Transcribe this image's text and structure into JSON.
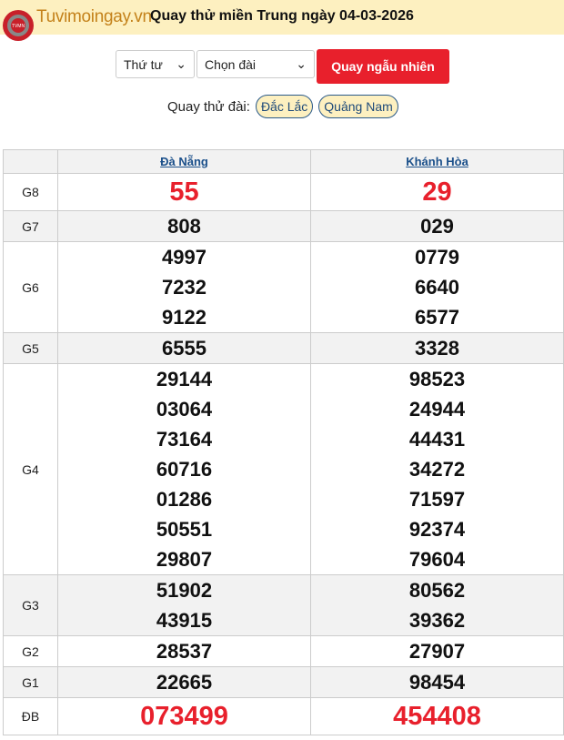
{
  "header": {
    "brand": "Tuvimoingay.vn",
    "title": "Quay thử miền Trung ngày 04-03-2026",
    "logo_text": "TVMN"
  },
  "controls": {
    "day_select": "Thứ tư",
    "province_select": "Chọn đài",
    "random_button": "Quay ngẫu nhiên"
  },
  "quick": {
    "label": "Quay thử đài:",
    "chips": [
      "Đắc Lắc",
      "Quảng Nam"
    ]
  },
  "colors": {
    "accent": "#e8202c",
    "header_bg": "#fdf0c0",
    "link": "#1a4f8a"
  },
  "table": {
    "columns": [
      "Đà Nẵng",
      "Khánh Hòa"
    ],
    "rows": [
      {
        "label": "G8",
        "values": [
          [
            "55"
          ],
          [
            "29"
          ]
        ]
      },
      {
        "label": "G7",
        "values": [
          [
            "808"
          ],
          [
            "029"
          ]
        ]
      },
      {
        "label": "G6",
        "values": [
          [
            "4997",
            "7232",
            "9122"
          ],
          [
            "0779",
            "6640",
            "6577"
          ]
        ]
      },
      {
        "label": "G5",
        "values": [
          [
            "6555"
          ],
          [
            "3328"
          ]
        ]
      },
      {
        "label": "G4",
        "values": [
          [
            "29144",
            "03064",
            "73164",
            "60716",
            "01286",
            "50551",
            "29807"
          ],
          [
            "98523",
            "24944",
            "44431",
            "34272",
            "71597",
            "92374",
            "79604"
          ]
        ]
      },
      {
        "label": "G3",
        "values": [
          [
            "51902",
            "43915"
          ],
          [
            "80562",
            "39362"
          ]
        ]
      },
      {
        "label": "G2",
        "values": [
          [
            "28537"
          ],
          [
            "27907"
          ]
        ]
      },
      {
        "label": "G1",
        "values": [
          [
            "22665"
          ],
          [
            "98454"
          ]
        ]
      },
      {
        "label": "ĐB",
        "values": [
          [
            "073499"
          ],
          [
            "454408"
          ]
        ]
      }
    ]
  }
}
